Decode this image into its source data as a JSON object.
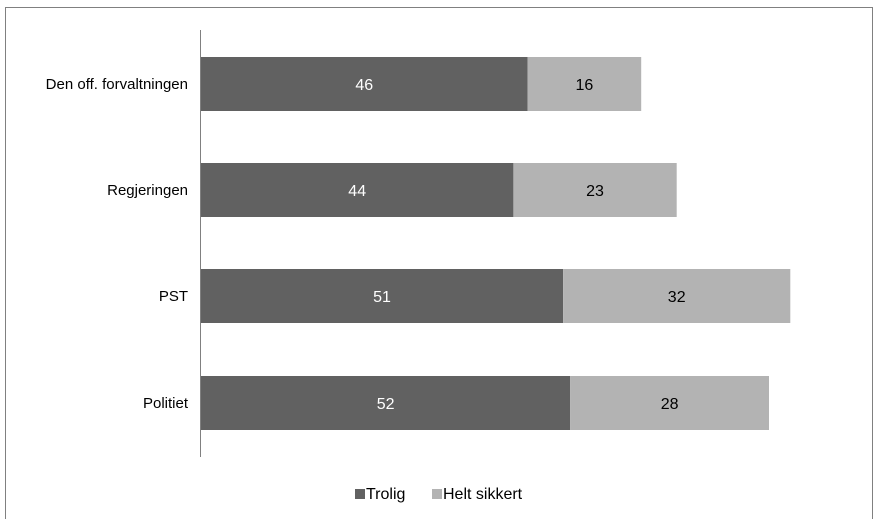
{
  "chart_data": {
    "type": "bar",
    "orientation": "horizontal",
    "stacked": true,
    "categories": [
      "Den off. forvaltningen",
      "Regjeringen",
      "PST",
      "Politiet"
    ],
    "series": [
      {
        "name": "Trolig",
        "values": [
          46,
          44,
          51,
          52
        ],
        "color": "#616161",
        "label_color": "#ffffff"
      },
      {
        "name": "Helt sikkert",
        "values": [
          16,
          23,
          32,
          28
        ],
        "color": "#b3b3b3",
        "label_color": "#000000"
      }
    ],
    "xlim": [
      0,
      90
    ],
    "title": "",
    "xlabel": "",
    "ylabel": "",
    "grid": false,
    "legend_position": "bottom"
  }
}
